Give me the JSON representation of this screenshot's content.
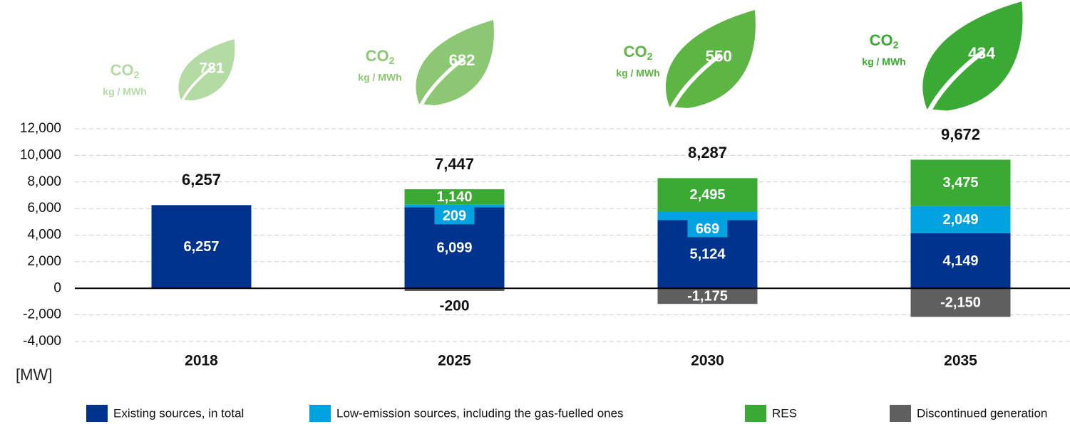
{
  "chart_data": {
    "type": "stacked_bar",
    "y_unit_label": "[MW]",
    "categories": [
      "2018",
      "2025",
      "2030",
      "2035"
    ],
    "series": [
      {
        "name": "Existing sources, in total",
        "color": "#00338d",
        "values": [
          6257,
          6099,
          5124,
          4149
        ],
        "value_labels": [
          "6,257",
          "6,099",
          "5,124",
          "4,149"
        ]
      },
      {
        "name": "Low-emission sources, including the gas-fuelled ones",
        "color": "#00a3e0",
        "values": [
          null,
          209,
          669,
          2049
        ],
        "value_labels": [
          null,
          "209",
          "669",
          "2,049"
        ]
      },
      {
        "name": "RES",
        "color": "#3aaa35",
        "values": [
          null,
          1140,
          2495,
          3475
        ],
        "value_labels": [
          null,
          "1,140",
          "2,495",
          "3,475"
        ]
      },
      {
        "name": "Discontinued generation",
        "color": "#5f5f5f",
        "values": [
          null,
          -200,
          -1175,
          -2150
        ],
        "value_labels": [
          null,
          "-200",
          "-1,175",
          "-2,150"
        ]
      }
    ],
    "totals": [
      6257,
      7447,
      8287,
      9672
    ],
    "total_labels": [
      "6,257",
      "7,447",
      "8,287",
      "9,672"
    ],
    "ylim": [
      -4000,
      12000
    ],
    "yticks": [
      {
        "value": -4000,
        "label": "-4,000"
      },
      {
        "value": -2000,
        "label": "-2,000"
      },
      0,
      {
        "value": 2000,
        "label": "2,000"
      },
      {
        "value": 4000,
        "label": "4,000"
      },
      {
        "value": 6000,
        "label": "6,000"
      },
      {
        "value": 8000,
        "label": "8,000"
      },
      {
        "value": 10000,
        "label": "10,000"
      },
      {
        "value": 12000,
        "label": "12,000"
      }
    ],
    "grid": true,
    "legend": "bottom",
    "co2": {
      "label": "CO",
      "label_sub": "2",
      "unit": "kg / MWh",
      "values": [
        781,
        682,
        550,
        434
      ],
      "colors": [
        "#b5dba4",
        "#8cc873",
        "#5db543",
        "#3aaa35"
      ]
    }
  }
}
